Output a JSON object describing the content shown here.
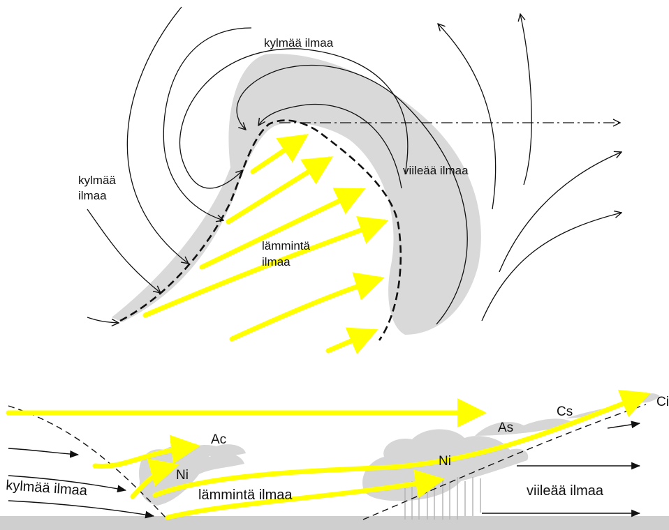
{
  "colors": {
    "warm_air_arrow": "#ffff00",
    "cloud_shade": "#d9d9d9",
    "ground": "#cfcfcf",
    "line": "#111111"
  },
  "top_diagram": {
    "labels": {
      "cold_air_top": "kylmää ilmaa",
      "cold_air_left_line1": "kylmää",
      "cold_air_left_line2": "ilmaa",
      "cool_air": "viileää ilmaa",
      "warm_air_line1": "lämmintä",
      "warm_air_line2": "ilmaa"
    }
  },
  "bottom_diagram": {
    "labels": {
      "ci": "Ci",
      "cs": "Cs",
      "as": "As",
      "ac": "Ac",
      "ni_left": "Ni",
      "ni_right": "Ni",
      "cold_air": "kylmää ilmaa",
      "warm_air": "lämmintä ilmaa",
      "cool_air": "viileää ilmaa"
    }
  }
}
